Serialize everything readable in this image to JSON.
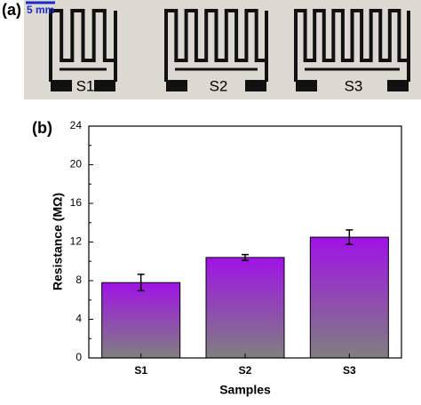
{
  "panel_a": {
    "panel_label": "(a)",
    "scale_bar": "5 mm",
    "samples": [
      "S1",
      "S2",
      "S3"
    ]
  },
  "chart_data": {
    "type": "bar",
    "panel_label": "(b)",
    "x_label": "Samples",
    "y_label": "Resistance (MΩ)",
    "categories": [
      "S1",
      "S2",
      "S3"
    ],
    "values": [
      7.8,
      10.4,
      12.5
    ],
    "errors": [
      0.85,
      0.3,
      0.75
    ],
    "gradient": [
      "#a012e6",
      "#808080"
    ],
    "ylim": [
      0,
      24
    ],
    "yticks": [
      0,
      4,
      8,
      12,
      16,
      20,
      24
    ]
  }
}
